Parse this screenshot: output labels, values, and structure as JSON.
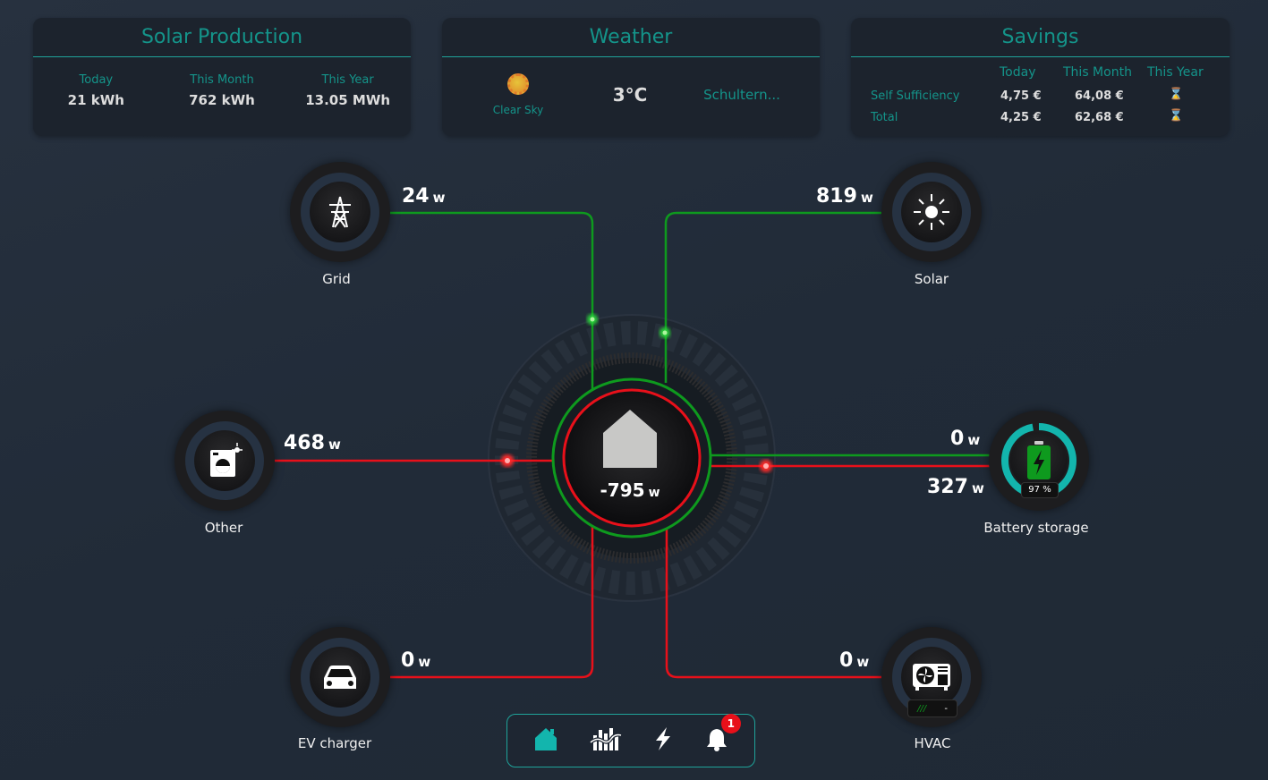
{
  "solar_production": {
    "title": "Solar Production",
    "stats": [
      {
        "label": "Today",
        "value": "21 kWh"
      },
      {
        "label": "This Month",
        "value": "762 kWh"
      },
      {
        "label": "This Year",
        "value": "13.05 MWh"
      }
    ]
  },
  "weather": {
    "title": "Weather",
    "condition": "Clear Sky",
    "icon": "sun-icon",
    "temperature": "3°C",
    "location": "Schultern..."
  },
  "savings": {
    "title": "Savings",
    "columns": [
      "Today",
      "This Month",
      "This Year"
    ],
    "rows": [
      {
        "label": "Self Sufficiency",
        "today": "4,75 €",
        "month": "64,08 €",
        "year_icon": "hourglass-icon"
      },
      {
        "label": "Total",
        "today": "4,25 €",
        "month": "62,68 €",
        "year_icon": "hourglass-icon"
      }
    ]
  },
  "flow": {
    "home": {
      "value": "-795",
      "unit": "w"
    },
    "grid": {
      "label": "Grid",
      "value": "24",
      "unit": "w"
    },
    "solar": {
      "label": "Solar",
      "value": "819",
      "unit": "w"
    },
    "other": {
      "label": "Other",
      "value": "468",
      "unit": "w"
    },
    "battery": {
      "label": "Battery storage",
      "value_in": "0",
      "value_out": "327",
      "unit": "w",
      "soc": "97 %",
      "soc_fraction": 0.97
    },
    "ev": {
      "label": "EV charger",
      "value": "0",
      "unit": "w"
    },
    "hvac": {
      "label": "HVAC",
      "value": "0",
      "unit": "w",
      "status": "-"
    }
  },
  "colors": {
    "accent": "#14948a",
    "import": "#e8101a",
    "export": "#0e9a1e",
    "battery_ring": "#13b5ad"
  },
  "nav": {
    "items": [
      "home-icon",
      "chart-icon",
      "bolt-icon",
      "bell-icon"
    ],
    "notifications": "1"
  }
}
